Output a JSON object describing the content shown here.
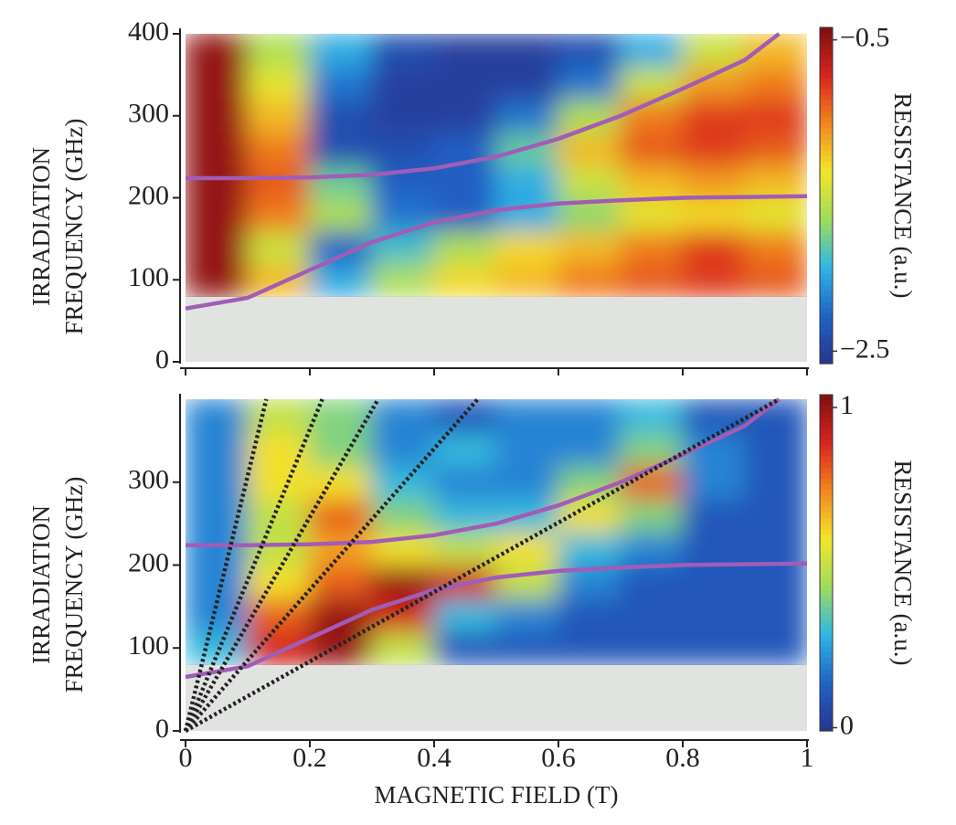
{
  "chart_data": [
    {
      "type": "heatmap",
      "ylabel": [
        "IRRADIATION",
        "FREQUENCY (GHz)"
      ],
      "zlabel": "RESISTANCE (a.u.)",
      "xlim": [
        0,
        1
      ],
      "ylim": [
        0,
        400
      ],
      "xticks": [
        0,
        0.2,
        0.4,
        0.6,
        0.8,
        1
      ],
      "show_xtick_labels": false,
      "yticks": [
        0,
        100,
        200,
        300,
        400
      ],
      "zlim": [
        -2.58,
        -0.42
      ],
      "zticks": [
        {
          "value": -0.5,
          "label": "−0.5"
        },
        {
          "value": -2.5,
          "label": "−2.5"
        }
      ],
      "colormap": [
        "#27348f",
        "#1f63c8",
        "#2fb6e6",
        "#9fdc5a",
        "#f3e62a",
        "#f2861f",
        "#d8231f",
        "#7c1010"
      ],
      "x_edges": [
        0,
        0.1,
        0.2,
        0.3,
        0.4,
        0.5,
        0.6,
        0.7,
        0.8,
        0.9,
        1
      ],
      "y_edges": [
        80,
        120,
        160,
        200,
        240,
        280,
        320,
        360,
        400
      ],
      "z": [
        [
          -0.5,
          -1.2,
          -2.0,
          -1.6,
          -1.3,
          -1.2,
          -1.0,
          -0.9,
          -0.8,
          -0.9
        ],
        [
          -0.5,
          -1.5,
          -2.3,
          -1.9,
          -1.6,
          -1.3,
          -1.2,
          -1.0,
          -0.8,
          -1.0
        ],
        [
          -0.5,
          -1.0,
          -1.6,
          -2.2,
          -2.3,
          -2.0,
          -1.7,
          -1.4,
          -1.3,
          -1.4
        ],
        [
          -0.5,
          -0.9,
          -1.8,
          -2.3,
          -2.3,
          -2.0,
          -1.5,
          -1.2,
          -1.1,
          -1.2
        ],
        [
          -0.5,
          -1.0,
          -2.4,
          -2.4,
          -2.3,
          -1.8,
          -1.2,
          -0.9,
          -0.8,
          -0.9
        ],
        [
          -0.5,
          -1.2,
          -2.4,
          -2.5,
          -2.5,
          -2.2,
          -1.6,
          -1.0,
          -0.8,
          -0.8
        ],
        [
          -0.5,
          -1.4,
          -2.2,
          -2.5,
          -2.5,
          -2.5,
          -2.2,
          -1.5,
          -1.1,
          -1.0
        ],
        [
          -0.5,
          -1.6,
          -2.0,
          -2.4,
          -2.5,
          -2.5,
          -2.4,
          -2.0,
          -1.5,
          -1.2
        ]
      ],
      "lines": [
        {
          "color": "#a15db6",
          "style": "solid",
          "x": [
            0,
            0.1,
            0.2,
            0.3,
            0.4,
            0.5,
            0.6,
            0.7,
            0.8,
            0.9,
            0.955
          ],
          "y": [
            224,
            224,
            225,
            228,
            236,
            250,
            272,
            300,
            333,
            368,
            400
          ]
        },
        {
          "color": "#a15db6",
          "style": "solid",
          "x": [
            0,
            0.1,
            0.2,
            0.3,
            0.4,
            0.5,
            0.6,
            0.7,
            0.8,
            0.9,
            1
          ],
          "y": [
            65,
            78,
            112,
            146,
            170,
            185,
            193,
            197,
            200,
            201,
            202
          ]
        }
      ]
    },
    {
      "type": "heatmap",
      "ylabel": [
        "IRRADIATION",
        "FREQUENCY (GHz)"
      ],
      "xlabel": "MAGNETIC FIELD (T)",
      "zlabel": "RESISTANCE (a.u.)",
      "xlim": [
        0,
        1
      ],
      "ylim": [
        0,
        400
      ],
      "xticks": [
        0,
        0.2,
        0.4,
        0.6,
        0.8,
        1
      ],
      "show_xtick_labels": true,
      "yticks": [
        0,
        100,
        200,
        300
      ],
      "zlim": [
        -0.01,
        1.04
      ],
      "zticks": [
        1,
        0
      ],
      "colormap": [
        "#27348f",
        "#1f63c8",
        "#2fb6e6",
        "#9fdc5a",
        "#f3e62a",
        "#f2861f",
        "#d8231f",
        "#7c1010"
      ],
      "x_edges": [
        0,
        0.1,
        0.2,
        0.3,
        0.4,
        0.5,
        0.6,
        0.7,
        0.8,
        0.9,
        1
      ],
      "y_edges": [
        80,
        120,
        160,
        200,
        240,
        280,
        320,
        360,
        400
      ],
      "z": [
        [
          0.3,
          0.9,
          1.0,
          0.5,
          0.1,
          0.1,
          0.1,
          0.1,
          0.1,
          0.1
        ],
        [
          0.2,
          0.8,
          1.0,
          0.9,
          0.3,
          0.2,
          0.1,
          0.1,
          0.1,
          0.1
        ],
        [
          0.2,
          0.6,
          0.8,
          1.0,
          0.9,
          0.5,
          0.2,
          0.1,
          0.1,
          0.1
        ],
        [
          0.2,
          0.5,
          0.7,
          0.6,
          0.5,
          0.6,
          0.3,
          0.2,
          0.1,
          0.1
        ],
        [
          0.2,
          0.5,
          0.8,
          0.4,
          0.3,
          0.3,
          0.6,
          0.4,
          0.1,
          0.1
        ],
        [
          0.2,
          0.6,
          0.6,
          0.3,
          0.2,
          0.2,
          0.4,
          0.8,
          0.2,
          0.1
        ],
        [
          0.2,
          0.6,
          0.4,
          0.2,
          0.3,
          0.2,
          0.2,
          0.4,
          0.2,
          0.1
        ],
        [
          0.2,
          0.5,
          0.4,
          0.2,
          0.1,
          0.2,
          0.2,
          0.3,
          0.1,
          0.1
        ]
      ],
      "lines": [
        {
          "color": "#a15db6",
          "style": "solid",
          "x": [
            0,
            0.1,
            0.2,
            0.3,
            0.4,
            0.5,
            0.6,
            0.7,
            0.8,
            0.9,
            0.955
          ],
          "y": [
            224,
            224,
            225,
            228,
            236,
            250,
            272,
            300,
            333,
            368,
            400
          ]
        },
        {
          "color": "#a15db6",
          "style": "solid",
          "x": [
            0,
            0.1,
            0.2,
            0.3,
            0.4,
            0.5,
            0.6,
            0.7,
            0.8,
            0.9,
            1
          ],
          "y": [
            65,
            78,
            112,
            146,
            170,
            185,
            193,
            197,
            200,
            201,
            202
          ]
        },
        {
          "color": "#222222",
          "style": "dotted",
          "x": [
            0,
            0.955
          ],
          "y": [
            0,
            400
          ]
        },
        {
          "color": "#222222",
          "style": "dotted",
          "x": [
            0,
            0.47
          ],
          "y": [
            0,
            400
          ]
        },
        {
          "color": "#222222",
          "style": "dotted",
          "x": [
            0,
            0.31
          ],
          "y": [
            0,
            400
          ]
        },
        {
          "color": "#222222",
          "style": "dotted",
          "x": [
            0,
            0.22
          ],
          "y": [
            0,
            400
          ]
        },
        {
          "color": "#222222",
          "style": "dotted",
          "x": [
            0,
            0.13
          ],
          "y": [
            0,
            400
          ]
        }
      ]
    }
  ]
}
